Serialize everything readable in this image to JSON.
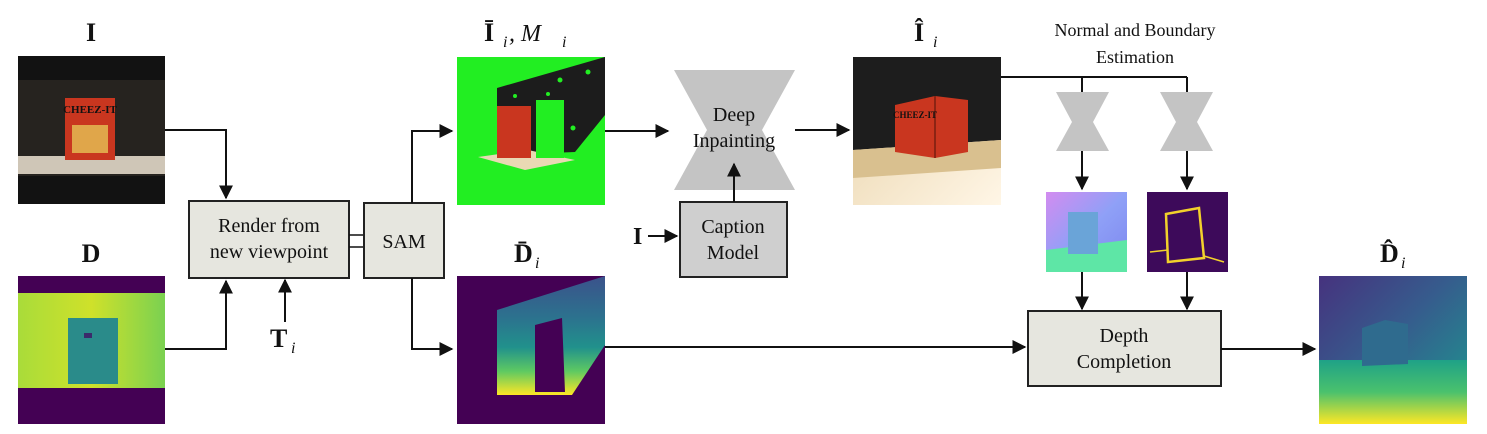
{
  "colors": {
    "box_fill": "#e6e6df",
    "box_stroke": "#222222",
    "caption_fill": "#cfcfcf",
    "network_fill": "#c4c4c4",
    "green_mask": "#22ee22",
    "viridis_dark": "#440154",
    "viridis_mid": "#21918c",
    "viridis_light": "#fde725",
    "boundary_yellow": "#f2d12b"
  },
  "labels": {
    "input_image": "I",
    "input_depth": "D",
    "masked_image": "Ī",
    "masked_image_sub": "i",
    "mask": ", M",
    "mask_sub": "i",
    "rendered_depth": "D̄",
    "rendered_depth_sub": "i",
    "inpainted_image": "Î",
    "inpainted_image_sub": "i",
    "completed_depth": "D̂",
    "completed_depth_sub": "i",
    "transform": "T",
    "transform_sub": "i",
    "caption_input": "I",
    "normal_boundary_line1": "Normal and Boundary",
    "normal_boundary_line2": "Estimation"
  },
  "boxes": {
    "render_line1": "Render from",
    "render_line2": "new viewpoint",
    "sam": "SAM",
    "inpaint_line1": "Deep",
    "inpaint_line2": "Inpainting",
    "caption_line1": "Caption",
    "caption_line2": "Model",
    "completion_line1": "Depth",
    "completion_line2": "Completion"
  },
  "icons": {
    "cereal_box": "cereal-box-icon",
    "network": "hourglass-network-icon"
  },
  "box_brand_text": "CHEEZ-IT"
}
